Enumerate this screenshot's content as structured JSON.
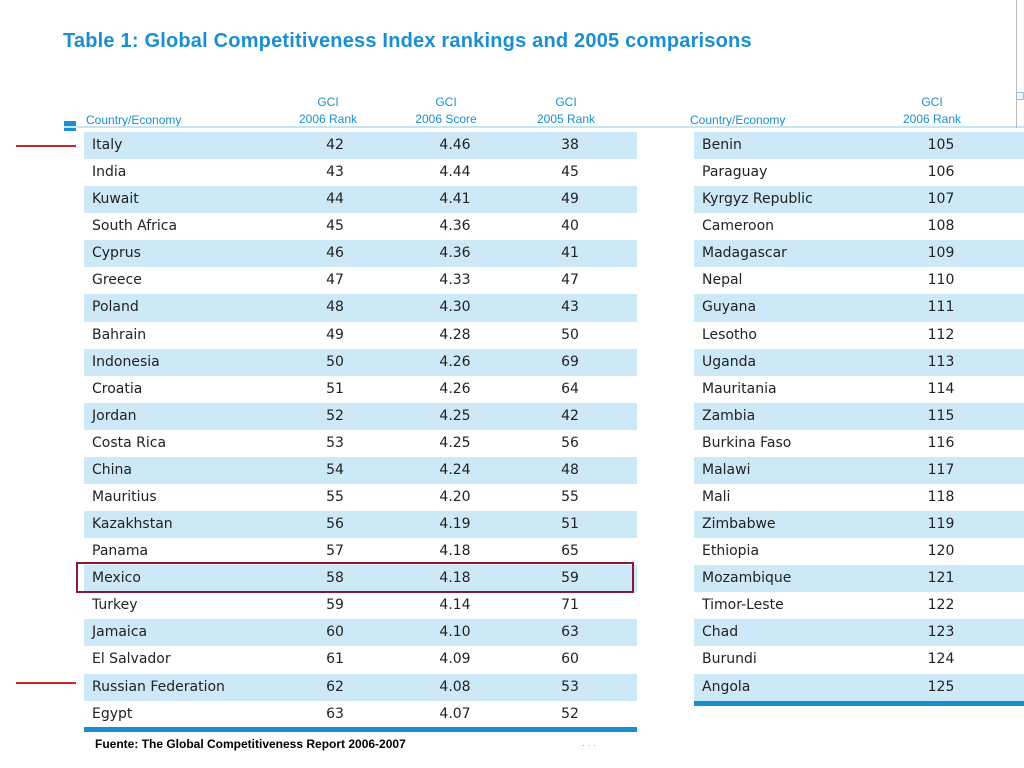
{
  "title": "Table 1: Global Competitiveness Index rankings and 2005 comparisons",
  "left_table": {
    "headers": {
      "country": "Country/Economy",
      "gci_rank_2006": [
        "GCI",
        "2006 Rank"
      ],
      "gci_score_2006": [
        "GCI",
        "2006 Score"
      ],
      "gci_rank_2005": [
        "GCI",
        "2005 Rank"
      ]
    },
    "rows": [
      {
        "country": "Italy",
        "rank2006": "42",
        "score2006": "4.46",
        "rank2005": "38"
      },
      {
        "country": "India",
        "rank2006": "43",
        "score2006": "4.44",
        "rank2005": "45"
      },
      {
        "country": "Kuwait",
        "rank2006": "44",
        "score2006": "4.41",
        "rank2005": "49"
      },
      {
        "country": "South Africa",
        "rank2006": "45",
        "score2006": "4.36",
        "rank2005": "40"
      },
      {
        "country": "Cyprus",
        "rank2006": "46",
        "score2006": "4.36",
        "rank2005": "41"
      },
      {
        "country": "Greece",
        "rank2006": "47",
        "score2006": "4.33",
        "rank2005": "47"
      },
      {
        "country": "Poland",
        "rank2006": "48",
        "score2006": "4.30",
        "rank2005": "43"
      },
      {
        "country": "Bahrain",
        "rank2006": "49",
        "score2006": "4.28",
        "rank2005": "50"
      },
      {
        "country": "Indonesia",
        "rank2006": "50",
        "score2006": "4.26",
        "rank2005": "69"
      },
      {
        "country": "Croatia",
        "rank2006": "51",
        "score2006": "4.26",
        "rank2005": "64"
      },
      {
        "country": "Jordan",
        "rank2006": "52",
        "score2006": "4.25",
        "rank2005": "42"
      },
      {
        "country": "Costa Rica",
        "rank2006": "53",
        "score2006": "4.25",
        "rank2005": "56"
      },
      {
        "country": "China",
        "rank2006": "54",
        "score2006": "4.24",
        "rank2005": "48"
      },
      {
        "country": "Mauritius",
        "rank2006": "55",
        "score2006": "4.20",
        "rank2005": "55"
      },
      {
        "country": "Kazakhstan",
        "rank2006": "56",
        "score2006": "4.19",
        "rank2005": "51"
      },
      {
        "country": "Panama",
        "rank2006": "57",
        "score2006": "4.18",
        "rank2005": "65"
      },
      {
        "country": "Mexico",
        "rank2006": "58",
        "score2006": "4.18",
        "rank2005": "59"
      },
      {
        "country": "Turkey",
        "rank2006": "59",
        "score2006": "4.14",
        "rank2005": "71"
      },
      {
        "country": "Jamaica",
        "rank2006": "60",
        "score2006": "4.10",
        "rank2005": "63"
      },
      {
        "country": "El Salvador",
        "rank2006": "61",
        "score2006": "4.09",
        "rank2005": "60"
      },
      {
        "country": "Russian Federation",
        "rank2006": "62",
        "score2006": "4.08",
        "rank2005": "53"
      },
      {
        "country": "Egypt",
        "rank2006": "63",
        "score2006": "4.07",
        "rank2005": "52"
      }
    ],
    "highlighted_country": "Mexico"
  },
  "right_table": {
    "headers": {
      "country": "Country/Economy",
      "gci_rank_2006": [
        "GCI",
        "2006 Rank"
      ]
    },
    "rows": [
      {
        "country": "Benin",
        "rank2006": "105"
      },
      {
        "country": "Paraguay",
        "rank2006": "106"
      },
      {
        "country": "Kyrgyz Republic",
        "rank2006": "107"
      },
      {
        "country": "Cameroon",
        "rank2006": "108"
      },
      {
        "country": "Madagascar",
        "rank2006": "109"
      },
      {
        "country": "Nepal",
        "rank2006": "110"
      },
      {
        "country": "Guyana",
        "rank2006": "111"
      },
      {
        "country": "Lesotho",
        "rank2006": "112"
      },
      {
        "country": "Uganda",
        "rank2006": "113"
      },
      {
        "country": "Mauritania",
        "rank2006": "114"
      },
      {
        "country": "Zambia",
        "rank2006": "115"
      },
      {
        "country": "Burkina Faso",
        "rank2006": "116"
      },
      {
        "country": "Malawi",
        "rank2006": "117"
      },
      {
        "country": "Mali",
        "rank2006": "118"
      },
      {
        "country": "Zimbabwe",
        "rank2006": "119"
      },
      {
        "country": "Ethiopia",
        "rank2006": "120"
      },
      {
        "country": "Mozambique",
        "rank2006": "121"
      },
      {
        "country": "Timor-Leste",
        "rank2006": "122"
      },
      {
        "country": "Chad",
        "rank2006": "123"
      },
      {
        "country": "Burundi",
        "rank2006": "124"
      },
      {
        "country": "Angola",
        "rank2006": "125"
      }
    ]
  },
  "source": "Fuente: The Global Competitiveness Report 2006-2007",
  "colors": {
    "accent": "#1a8fcf",
    "row_shade": "#cde9f7",
    "highlight_border": "#8b1a3a",
    "marker_line": "#c62828"
  }
}
